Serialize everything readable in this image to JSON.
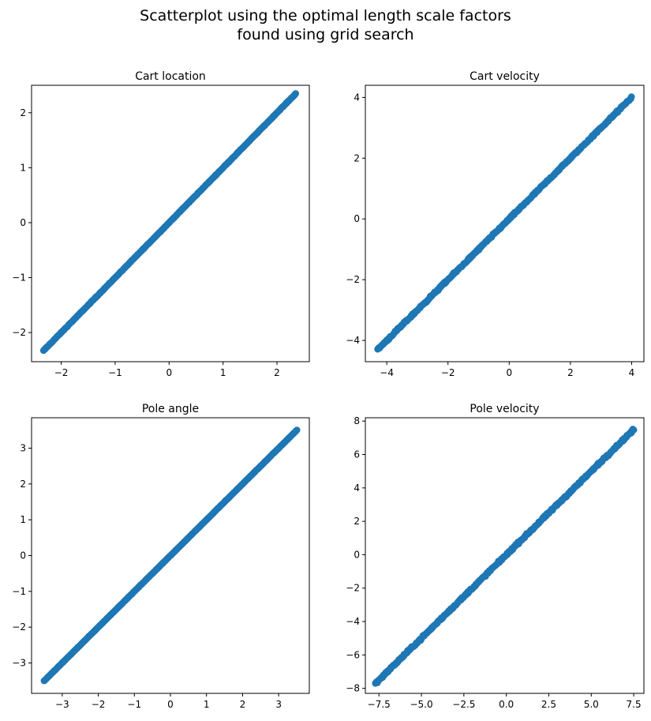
{
  "figure": {
    "title_line1": "Scatterplot using the optimal length scale factors",
    "title_line2": "found using grid search"
  },
  "colors": {
    "marker": "#1f77b4"
  },
  "chart_data": [
    {
      "type": "scatter",
      "title": "Cart location",
      "xlim": [
        -2.55,
        2.6
      ],
      "ylim": [
        -2.53,
        2.5
      ],
      "xticks": [
        -2,
        -1,
        0,
        1,
        2
      ],
      "xtick_labels": [
        "−2",
        "−1",
        "0",
        "1",
        "2"
      ],
      "yticks": [
        -2,
        -1,
        0,
        1,
        2
      ],
      "ytick_labels": [
        "−2",
        "−1",
        "0",
        "1",
        "2"
      ],
      "range": [
        -2.33,
        2.35
      ],
      "noise": 0.01,
      "grid": false
    },
    {
      "type": "scatter",
      "title": "Cart velocity",
      "xlim": [
        -4.7,
        4.4
      ],
      "ylim": [
        -4.7,
        4.4
      ],
      "xticks": [
        -4,
        -2,
        0,
        2,
        4
      ],
      "xtick_labels": [
        "−4",
        "−2",
        "0",
        "2",
        "4"
      ],
      "yticks": [
        -4,
        -2,
        0,
        2,
        4
      ],
      "ytick_labels": [
        "−4",
        "−2",
        "0",
        "2",
        "4"
      ],
      "range": [
        -4.3,
        4.0
      ],
      "noise": 0.05,
      "grid": false
    },
    {
      "type": "scatter",
      "title": "Pole angle",
      "xlim": [
        -3.85,
        3.85
      ],
      "ylim": [
        -3.85,
        3.85
      ],
      "xticks": [
        -3,
        -2,
        -1,
        0,
        1,
        2,
        3
      ],
      "xtick_labels": [
        "−3",
        "−2",
        "−1",
        "0",
        "1",
        "2",
        "3"
      ],
      "yticks": [
        -3,
        -2,
        -1,
        0,
        1,
        2,
        3
      ],
      "ytick_labels": [
        "−3",
        "−2",
        "−1",
        "0",
        "1",
        "2",
        "3"
      ],
      "range": [
        -3.5,
        3.5
      ],
      "noise": 0.01,
      "grid": false
    },
    {
      "type": "scatter",
      "title": "Pole velocity",
      "xlim": [
        -8.3,
        8.1
      ],
      "ylim": [
        -8.3,
        8.2
      ],
      "xticks": [
        -7.5,
        -5.0,
        -2.5,
        0.0,
        2.5,
        5.0,
        7.5
      ],
      "xtick_labels": [
        "−7.5",
        "−5.0",
        "−2.5",
        "0.0",
        "2.5",
        "5.0",
        "7.5"
      ],
      "yticks": [
        -8,
        -6,
        -4,
        -2,
        0,
        2,
        4,
        6,
        8
      ],
      "ytick_labels": [
        "−8",
        "−6",
        "−4",
        "−2",
        "0",
        "2",
        "4",
        "6",
        "8"
      ],
      "range": [
        -7.7,
        7.5
      ],
      "noise": 0.1,
      "grid": false
    }
  ]
}
